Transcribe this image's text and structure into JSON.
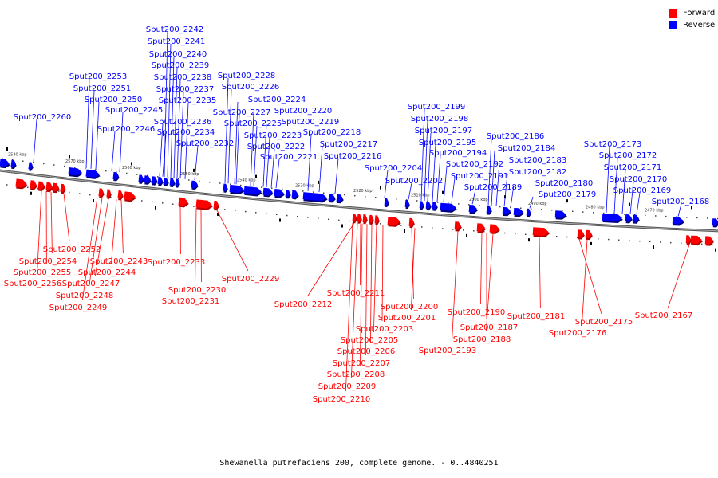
{
  "caption": "Shewanella putrefaciens 200, complete genome. - 0..4840251",
  "legend": [
    {
      "label": "Forward",
      "color": "#ff0000"
    },
    {
      "label": "Reverse",
      "color": "#0000ff"
    }
  ],
  "colors": {
    "forward": "#ff0000",
    "forward_dark": "#b30000",
    "reverse": "#0000ff",
    "reverse_dark": "#00007a",
    "backbone": "#888888"
  },
  "scale_labels": [
    "2580 kbp",
    "2570 kbp",
    "2560 kbp",
    "2550 kbp",
    "2540 kbp",
    "2530 kbp",
    "2520 kbp",
    "2510 kbp",
    "2500 kbp",
    "2490 kbp",
    "2480 kbp",
    "2470 kbp"
  ],
  "reverse_genes": [
    "Sput200_2242",
    "Sput200_2241",
    "Sput200_2240",
    "Sput200_2239",
    "Sput200_2238",
    "Sput200_2237",
    "Sput200_2235",
    "Sput200_2253",
    "Sput200_2251",
    "Sput200_2250",
    "Sput200_2245",
    "Sput200_2246",
    "Sput200_2236",
    "Sput200_2234",
    "Sput200_2232",
    "Sput200_2260",
    "Sput200_2228",
    "Sput200_2226",
    "Sput200_2224",
    "Sput200_2227",
    "Sput200_2220",
    "Sput200_2225",
    "Sput200_2219",
    "Sput200_2223",
    "Sput200_2218",
    "Sput200_2222",
    "Sput200_2217",
    "Sput200_2221",
    "Sput200_2216",
    "Sput200_2204",
    "Sput200_2202",
    "Sput200_2199",
    "Sput200_2198",
    "Sput200_2197",
    "Sput200_2195",
    "Sput200_2194",
    "Sput200_2192",
    "Sput200_2191",
    "Sput200_2189",
    "Sput200_2186",
    "Sput200_2184",
    "Sput200_2183",
    "Sput200_2182",
    "Sput200_2180",
    "Sput200_2179",
    "Sput200_2173",
    "Sput200_2172",
    "Sput200_2171",
    "Sput200_2170",
    "Sput200_2169",
    "Sput200_2168"
  ],
  "forward_genes": [
    "Sput200_2252",
    "Sput200_2254",
    "Sput200_2255",
    "Sput200_2256",
    "Sput200_2243",
    "Sput200_2244",
    "Sput200_2247",
    "Sput200_2248",
    "Sput200_2249",
    "Sput200_2233",
    "Sput200_2230",
    "Sput200_2231",
    "Sput200_2229",
    "Sput200_2212",
    "Sput200_2211",
    "Sput200_2200",
    "Sput200_2201",
    "Sput200_2203",
    "Sput200_2205",
    "Sput200_2206",
    "Sput200_2207",
    "Sput200_2208",
    "Sput200_2209",
    "Sput200_2210",
    "Sput200_2190",
    "Sput200_2187",
    "Sput200_2188",
    "Sput200_2193",
    "Sput200_2181",
    "Sput200_2175",
    "Sput200_2176",
    "Sput200_2167"
  ]
}
